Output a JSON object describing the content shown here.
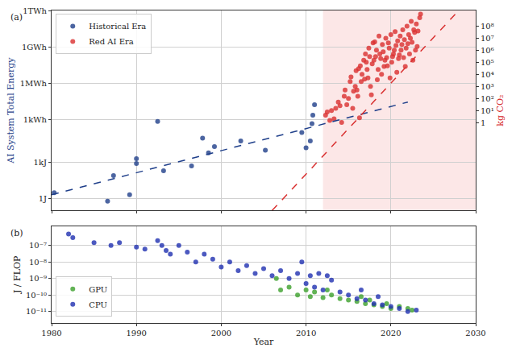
{
  "chart_data": [
    {
      "type": "scatter",
      "label": "(a)",
      "ylabel": "AI System Total Energy",
      "y2label": "kg CO₂",
      "y2label_color": "#d62728",
      "log": "y",
      "grid": true,
      "legend": "upper left",
      "tick_labels": "y",
      "xlim": [
        1980,
        2030
      ],
      "xticks": [
        1980,
        1990,
        2000,
        2010,
        2020,
        2030
      ],
      "ylim": [
        0.1,
        4000000000000000.0
      ],
      "yticks": [
        {
          "value": 1,
          "label": "1J"
        },
        {
          "value": 1000,
          "label": "1kJ"
        },
        {
          "value": 3600000,
          "label": "1kWh"
        },
        {
          "value": 3600000000,
          "label": "1MWh"
        },
        {
          "value": 3600000000000,
          "label": "1GWh"
        },
        {
          "value": 3600000000000000,
          "label": "1TWh"
        }
      ],
      "y2lim": [
        5e-08,
        2000000000.0
      ],
      "y2ticks": [
        1,
        {
          "value": 10,
          "label": "10¹"
        },
        {
          "value": 100,
          "label": "10²"
        },
        {
          "value": 1000,
          "label": "10³"
        },
        {
          "value": 10000,
          "label": "10⁴"
        },
        {
          "value": 100000,
          "label": "10⁵"
        },
        {
          "value": 1000000,
          "label": "10⁶"
        },
        {
          "value": 10000000,
          "label": "10⁷"
        },
        {
          "value": 100000000,
          "label": "10⁸"
        }
      ],
      "shaded_region": {
        "x": [
          2012,
          2030
        ],
        "color": "#f9c9c9"
      },
      "series": [
        {
          "name": "Historical Era",
          "type": "scatter",
          "marker": "circle",
          "color": "#1f3f8a",
          "x": [
            1980.3,
            1986.6,
            1987.3,
            1989.2,
            1990.0,
            1990.0,
            1992.5,
            1993.2,
            1996.5,
            1997.8,
            1998.5,
            1999.2,
            2002.3,
            2005.2,
            2009.5,
            2010.0,
            2010.5,
            2010.7,
            2010.8,
            2011.0
          ],
          "values": [
            3,
            0.6,
            80,
            2,
            800,
            2000,
            2500000,
            200,
            500,
            100000,
            6000,
            20000,
            60000,
            10000,
            300000,
            16000,
            60000,
            1600000,
            8000000,
            60000000
          ]
        },
        {
          "name": "Red AI Era",
          "type": "scatter",
          "marker": "circle",
          "color": "#d93030",
          "x": [
            2012.3,
            2012.5,
            2012.8,
            2013.0,
            2013.3,
            2013.5,
            2013.8,
            2014.0,
            2014.2,
            2014.5,
            2014.6,
            2014.8,
            2015.0,
            2015.2,
            2015.3,
            2015.5,
            2015.6,
            2015.8,
            2015.9,
            2016.0,
            2016.1,
            2016.2,
            2016.3,
            2016.4,
            2016.5,
            2016.6,
            2016.8,
            2016.9,
            2017.0,
            2017.1,
            2017.2,
            2017.3,
            2017.4,
            2017.5,
            2017.6,
            2017.7,
            2017.8,
            2017.9,
            2018.0,
            2018.1,
            2018.2,
            2018.3,
            2018.4,
            2018.5,
            2018.6,
            2018.7,
            2018.8,
            2018.9,
            2019.0,
            2019.1,
            2019.2,
            2019.3,
            2019.4,
            2019.5,
            2019.6,
            2019.7,
            2019.8,
            2019.9,
            2020.0,
            2020.1,
            2020.2,
            2020.3,
            2020.4,
            2020.5,
            2020.6,
            2020.7,
            2020.8,
            2020.9,
            2021.0,
            2021.1,
            2021.2,
            2021.3,
            2021.4,
            2021.5,
            2021.6,
            2021.7,
            2021.8,
            2021.9,
            2022.0,
            2022.1,
            2022.2,
            2022.3,
            2022.4,
            2022.5,
            2022.6,
            2022.7,
            2022.8,
            2022.9,
            2023.0,
            2023.1,
            2023.2,
            2023.4,
            2023.5
          ],
          "values": [
            8000000.0,
            15000000.0,
            3000000.0,
            20000000.0,
            4000000.0,
            30000000.0,
            100000000.0,
            50000000.0,
            2000000.0,
            300000000.0,
            1000000000.0,
            60000000.0,
            200000000.0,
            5000000000.0,
            12000000000.0,
            30000000.0,
            800000000.0,
            2000000000.0,
            40000000000.0,
            1000000000.0,
            300000000.0,
            60000000000.0,
            5000000.0,
            100000000000.0,
            5000000000.0,
            20000000000.0,
            300000000000.0,
            8000000000.0,
            1000000000000.0,
            200000000000.0,
            50000000000.0,
            10000000000.0,
            3000000000000.0,
            600000000000.0,
            2000000000.0,
            400000000.0,
            150000000000.0,
            8000000000000.0,
            300000000000.0,
            10000000000000.0,
            600000000000.0,
            2000000000000.0,
            7000000000.0,
            50000000000.0,
            30000000000000.0,
            1000000000000.0,
            400000000000.0,
            20000000000.0,
            6000000000000.0,
            1500000000000.0,
            90000000000.0,
            300000000000.0,
            20000000000000.0,
            500000000000.0,
            100000000000.0,
            8000000000000.0,
            3000000000000.0,
            10000000000.0,
            40000000000000.0,
            200000000000.0,
            600000000000.0,
            1000000000000.0,
            2000000000000.0,
            70000000000000.0,
            5000000000000.0,
            30000000000.0,
            12000000000000.0,
            400000000000.0,
            800000000000.0,
            30000000000000.0,
            2000000000000.0,
            6000000000000.0,
            100000000000000.0,
            500000000000.0,
            15000000000000.0,
            90000000000.0,
            3000000000000.0,
            200000000000000.0,
            7000000000000.0,
            40000000000000.0,
            1000000000000.0,
            20000000000000.0,
            500000000000000.0,
            9000000000000.0,
            300000000000.0,
            100000000000000.0,
            60000000000000.0,
            2000000000000.0,
            300000000000000.0,
            4000000000000.0,
            80000000000000.0,
            1000000000000000.0,
            2000000000000000.0
          ]
        },
        {
          "type": "line",
          "line_style": "dashed",
          "color": "#1f3f8a",
          "x": [
            1980,
            2022
          ],
          "values": [
            2,
            100000000.0
          ]
        },
        {
          "type": "line",
          "line_style": "dashed",
          "color": "#d93030",
          "x": [
            2006,
            2028
          ],
          "values": [
            0.1,
            4000000000000000.0
          ]
        }
      ]
    },
    {
      "type": "scatter",
      "label": "(b)",
      "xlabel": "Year",
      "ylabel": "J / FLOP",
      "log": "y",
      "grid": true,
      "legend": "lower left",
      "xlim": [
        1980,
        2030
      ],
      "xticks": [
        1980,
        1990,
        2000,
        2010,
        2020,
        2030
      ],
      "ylim": [
        2e-12,
        1.5e-06
      ],
      "yticks": [
        {
          "value": 1e-07,
          "label": "10⁻⁷"
        },
        {
          "value": 1e-08,
          "label": "10⁻⁸"
        },
        {
          "value": 1e-09,
          "label": "10⁻⁹"
        },
        {
          "value": 1e-10,
          "label": "10⁻¹⁰"
        },
        {
          "value": 1e-11,
          "label": "10⁻¹¹"
        }
      ],
      "series": [
        {
          "name": "GPU",
          "type": "scatter",
          "marker": "circle",
          "color": "#3ca02c",
          "x": [
            2006.5,
            2007.0,
            2008.0,
            2009.0,
            2010.0,
            2010.5,
            2011.0,
            2012.0,
            2012.5,
            2013.0,
            2014.0,
            2015.0,
            2016.0,
            2016.5,
            2017.0,
            2017.5,
            2018.0,
            2019.0,
            2019.5,
            2020.0,
            2021.0,
            2022.0,
            2022.5
          ],
          "values": [
            1e-09,
            2e-10,
            3e-10,
            1e-10,
            2e-10,
            8e-11,
            1.5e-10,
            7e-11,
            2e-10,
            1e-10,
            6e-11,
            5e-11,
            4e-11,
            8e-11,
            3e-11,
            5e-11,
            2.5e-11,
            2e-11,
            3e-11,
            1.5e-11,
            2e-11,
            1.5e-11,
            1.2e-11
          ]
        },
        {
          "name": "CPU",
          "type": "scatter",
          "marker": "circle",
          "color": "#1f2fb0",
          "x": [
            1982.0,
            1982.5,
            1985.0,
            1987.0,
            1988.0,
            1990.0,
            1991.0,
            1992.5,
            1993.0,
            1993.5,
            1994.0,
            1995.0,
            1996.0,
            1997.0,
            1998.0,
            1999.0,
            2000.0,
            2001.0,
            2002.0,
            2003.0,
            2004.0,
            2005.0,
            2006.0,
            2007.0,
            2008.0,
            2009.0,
            2009.5,
            2010.0,
            2010.5,
            2011.0,
            2011.5,
            2012.0,
            2012.5,
            2013.0,
            2014.0,
            2015.0,
            2016.0,
            2016.5,
            2017.0,
            2018.0,
            2018.5,
            2019.0,
            2020.0,
            2021.0,
            2022.0,
            2023.0
          ],
          "values": [
            5e-07,
            3e-07,
            1.5e-07,
            1e-07,
            1.5e-07,
            8e-08,
            6e-08,
            2e-07,
            1e-07,
            5e-08,
            3e-08,
            1e-07,
            4e-08,
            1e-08,
            3e-08,
            1.5e-08,
            5e-09,
            1e-08,
            3e-09,
            6e-09,
            2e-09,
            4e-09,
            1.5e-09,
            3e-09,
            1e-09,
            2e-09,
            1e-08,
            5e-10,
            1.5e-09,
            3e-10,
            2e-09,
            2e-10,
            1.5e-09,
            8e-10,
            1.5e-10,
            1e-10,
            6e-11,
            2e-10,
            5e-11,
            3e-11,
            8e-11,
            2.5e-11,
            2e-11,
            1.5e-11,
            1e-11,
            1.2e-11
          ]
        }
      ]
    }
  ]
}
